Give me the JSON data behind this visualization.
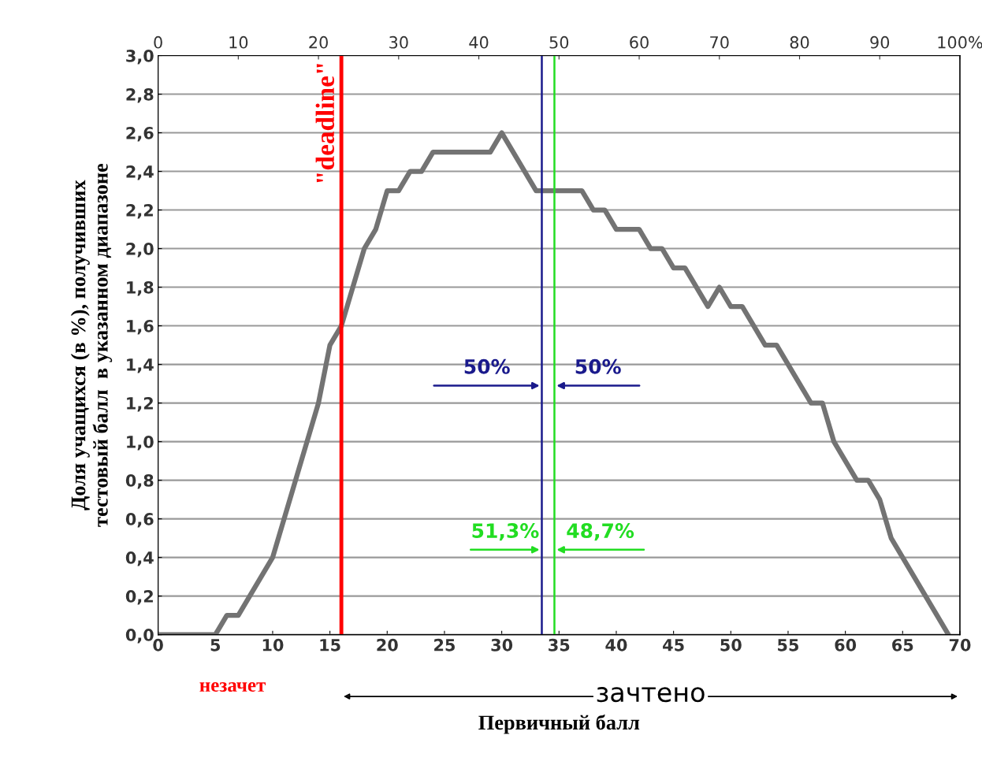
{
  "chart_data": {
    "type": "line",
    "xlabel": "Первичный балл",
    "ylabel": "Доля учащихся (в %), получивших\nтестовый балл  в указанном диапазоне",
    "x": [
      0,
      5,
      6,
      7,
      8,
      9,
      10,
      11,
      12,
      13,
      14,
      15,
      16,
      17,
      18,
      19,
      20,
      21,
      22,
      23,
      24,
      25,
      26,
      27,
      28,
      29,
      30,
      31,
      32,
      33,
      34,
      35,
      36,
      37,
      38,
      39,
      40,
      41,
      42,
      43,
      44,
      45,
      46,
      47,
      48,
      49,
      50,
      51,
      52,
      53,
      54,
      55,
      56,
      57,
      58,
      59,
      60,
      61,
      62,
      63,
      64,
      65,
      66,
      67,
      68,
      69
    ],
    "series": [
      {
        "color": "#737373",
        "values": [
          0,
          0,
          0.1,
          0.1,
          0.2,
          0.3,
          0.4,
          0.6,
          0.8,
          1.0,
          1.2,
          1.5,
          1.6,
          1.8,
          2.0,
          2.1,
          2.3,
          2.3,
          2.4,
          2.4,
          2.5,
          2.5,
          2.5,
          2.5,
          2.5,
          2.5,
          2.6,
          2.5,
          2.4,
          2.3,
          2.3,
          2.3,
          2.3,
          2.3,
          2.2,
          2.2,
          2.1,
          2.1,
          2.1,
          2.0,
          2.0,
          1.9,
          1.9,
          1.8,
          1.7,
          1.8,
          1.7,
          1.7,
          1.6,
          1.5,
          1.5,
          1.4,
          1.3,
          1.2,
          1.2,
          1.0,
          0.9,
          0.8,
          0.8,
          0.7,
          0.5,
          0.4,
          0.3,
          0.2,
          0.1,
          0.0
        ]
      }
    ],
    "xlim": [
      0,
      70
    ],
    "xticks": [
      0,
      5,
      10,
      15,
      20,
      25,
      30,
      35,
      40,
      45,
      50,
      55,
      60,
      65,
      70
    ],
    "ylim": [
      0,
      3.0
    ],
    "yticks": [
      {
        "value": 0,
        "label": "0,0"
      },
      {
        "value": 0.2,
        "label": "0,2"
      },
      {
        "value": 0.4,
        "label": "0,4"
      },
      {
        "value": 0.6,
        "label": "0,6"
      },
      {
        "value": 0.8,
        "label": "0,8"
      },
      {
        "value": 1.0,
        "label": "1,0"
      },
      {
        "value": 1.2,
        "label": "1,2"
      },
      {
        "value": 1.4,
        "label": "1,4"
      },
      {
        "value": 1.6,
        "label": "1,6"
      },
      {
        "value": 1.8,
        "label": "1,8"
      },
      {
        "value": 2.0,
        "label": "2,0"
      },
      {
        "value": 2.2,
        "label": "2,2"
      },
      {
        "value": 2.4,
        "label": "2,4"
      },
      {
        "value": 2.6,
        "label": "2,6"
      },
      {
        "value": 2.8,
        "label": "2,8"
      },
      {
        "value": 3.0,
        "label": "3,0"
      }
    ],
    "x2lim": [
      0,
      100
    ],
    "x2ticks": [
      0,
      10,
      20,
      30,
      40,
      50,
      60,
      70,
      80,
      90,
      {
        "value": 100,
        "label": "100%"
      }
    ],
    "grid": "y",
    "marker": "none",
    "line_style": "solid",
    "legend": false,
    "ref_lines": [
      {
        "axis": "x",
        "value": 16,
        "label": "\"deadline\"",
        "color": "#ff0000"
      },
      {
        "axis": "x",
        "value": 33.5,
        "label": null,
        "color": "#1a1a8c"
      },
      {
        "axis": "x",
        "value": 34.6,
        "label": null,
        "color": "#22dd22"
      }
    ],
    "annotations": [
      "50%",
      "50%",
      "51,3%",
      "48,7%",
      "незачет",
      "зачтено"
    ]
  }
}
